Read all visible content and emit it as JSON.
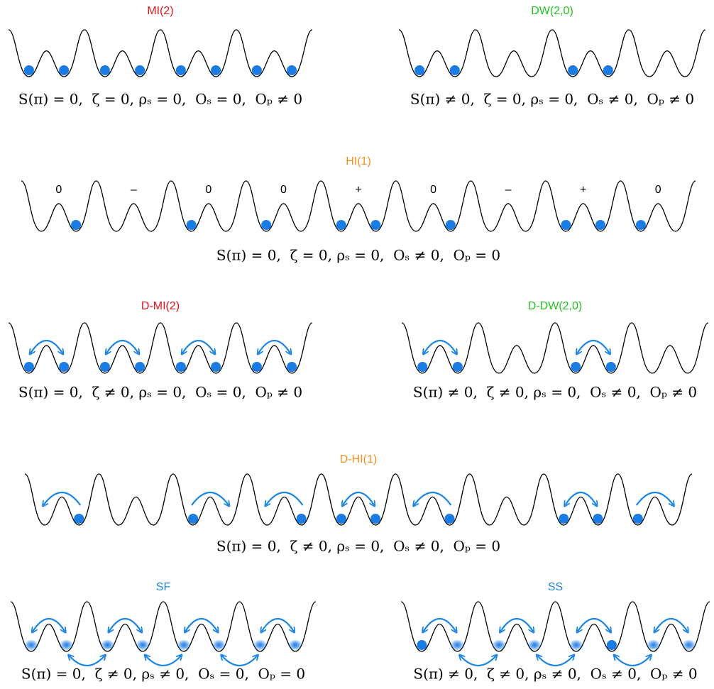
{
  "panels": [
    {
      "title": "MI(2)",
      "formula": "S(π) = 0,  ζ = 0, ρₛ = 0,  Oₛ = 0,  Oₚ ≠ 0"
    },
    {
      "title": "DW(2,0)",
      "formula": "S(π) ≠ 0,  ζ = 0, ρₛ = 0,  Oₛ ≠ 0,  Oₚ ≠ 0"
    },
    {
      "title": "HI(1)",
      "formula": "S(π) = 0,  ζ = 0, ρₛ = 0,  Oₛ ≠ 0,  Oₚ = 0",
      "site_labels": [
        "0",
        "–",
        "0",
        "0",
        "+",
        "0",
        "–",
        "+",
        "0"
      ]
    },
    {
      "title": "D-MI(2)",
      "formula": "S(π) = 0,  ζ ≠ 0, ρₛ = 0,  Oₛ = 0,  Oₚ ≠ 0"
    },
    {
      "title": "D-DW(2,0)",
      "formula": "S(π) ≠ 0,  ζ ≠ 0, ρₛ = 0,  Oₛ ≠ 0,  Oₚ ≠ 0"
    },
    {
      "title": "D-HI(1)",
      "formula": "S(π) = 0,  ζ ≠ 0, ρₛ = 0,  Oₛ ≠ 0,  Oₚ = 0"
    },
    {
      "title": "SF",
      "formula": "S(π) = 0,  ζ ≠ 0, ρₛ ≠ 0,  Oₛ = 0,  Oₚ = 0"
    },
    {
      "title": "SS",
      "formula": "S(π) ≠ 0,  ζ ≠ 0, ρₛ ≠ 0,  Oₛ ≠ 0,  Oₚ ≠ 0"
    }
  ]
}
